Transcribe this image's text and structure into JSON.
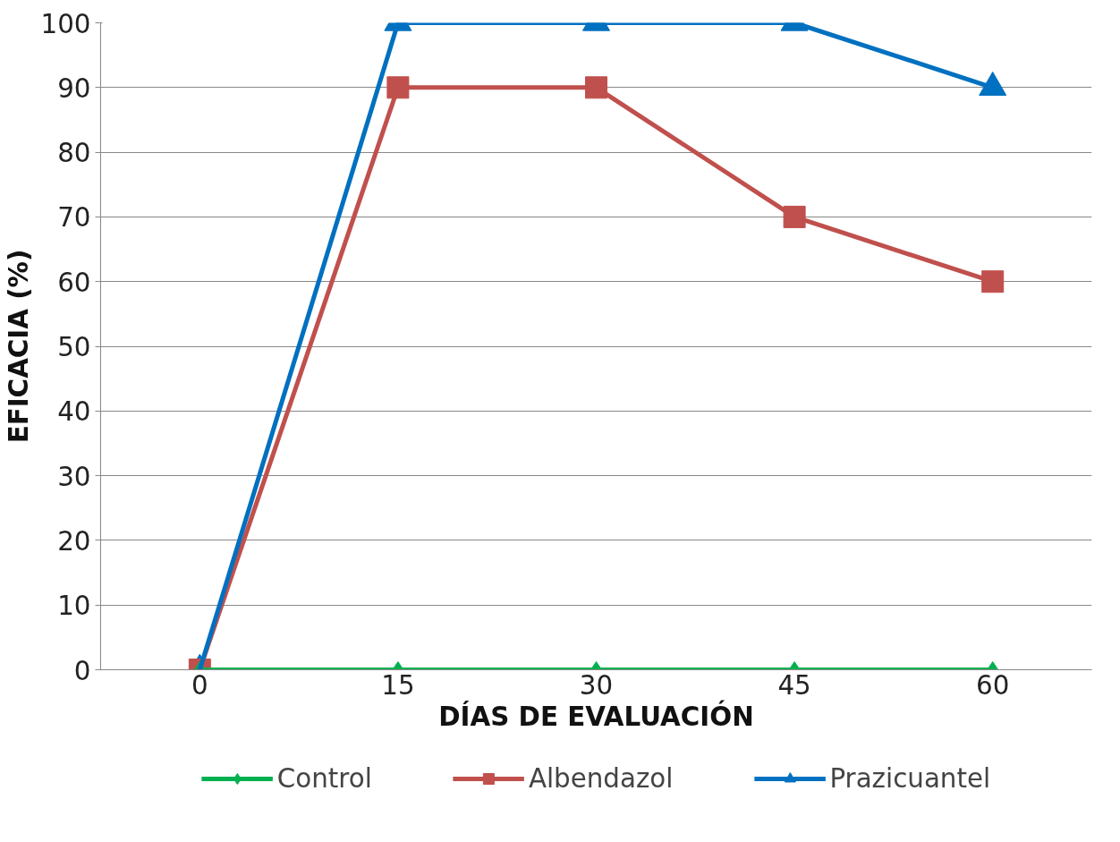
{
  "chart_data": {
    "type": "line",
    "xlabel": "DÍAS DE EVALUACIÓN",
    "ylabel": "EFICACIA (%)",
    "categories": [
      "0",
      "15",
      "30",
      "45",
      "60"
    ],
    "series": [
      {
        "name": "Control",
        "color": "#00b050",
        "marker": "diamond",
        "values": [
          0,
          0,
          0,
          0,
          0
        ]
      },
      {
        "name": "Albendazol",
        "color": "#c0504d",
        "marker": "square",
        "values": [
          0,
          90,
          90,
          70,
          60
        ]
      },
      {
        "name": "Prazicuantel",
        "color": "#0070c0",
        "marker": "triangle",
        "values": [
          0,
          100,
          100,
          100,
          90
        ]
      }
    ],
    "ylim": [
      0,
      100
    ],
    "yticks": [
      0,
      10,
      20,
      30,
      40,
      50,
      60,
      70,
      80,
      90,
      100
    ],
    "grid": "y",
    "legend": "bottom",
    "line_style": "solid"
  }
}
